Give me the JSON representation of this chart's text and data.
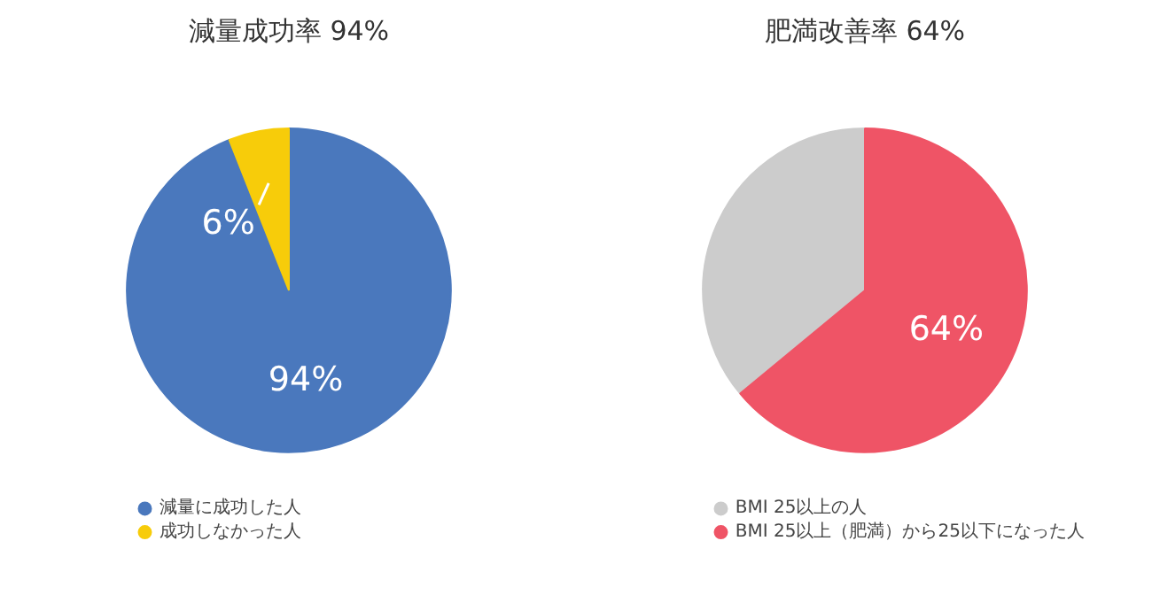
{
  "chart_data": [
    {
      "type": "pie",
      "title": "減量成功率 94%",
      "categories": [
        "減量に成功した人",
        "成功しなかった人"
      ],
      "values": [
        94,
        6
      ],
      "colors": [
        "#4a78bd",
        "#f7cc0a"
      ],
      "value_labels": [
        "94%",
        "6%"
      ],
      "legend": "bottom"
    },
    {
      "type": "pie",
      "title": "肥満改善率 64%",
      "categories": [
        "BMI 25以上の人",
        "BMI 25以上（肥満）から25以下になった人"
      ],
      "values": [
        36,
        64
      ],
      "colors": [
        "#cccccc",
        "#ef5466"
      ],
      "value_labels": [
        null,
        "64%"
      ],
      "legend": "bottom"
    }
  ]
}
